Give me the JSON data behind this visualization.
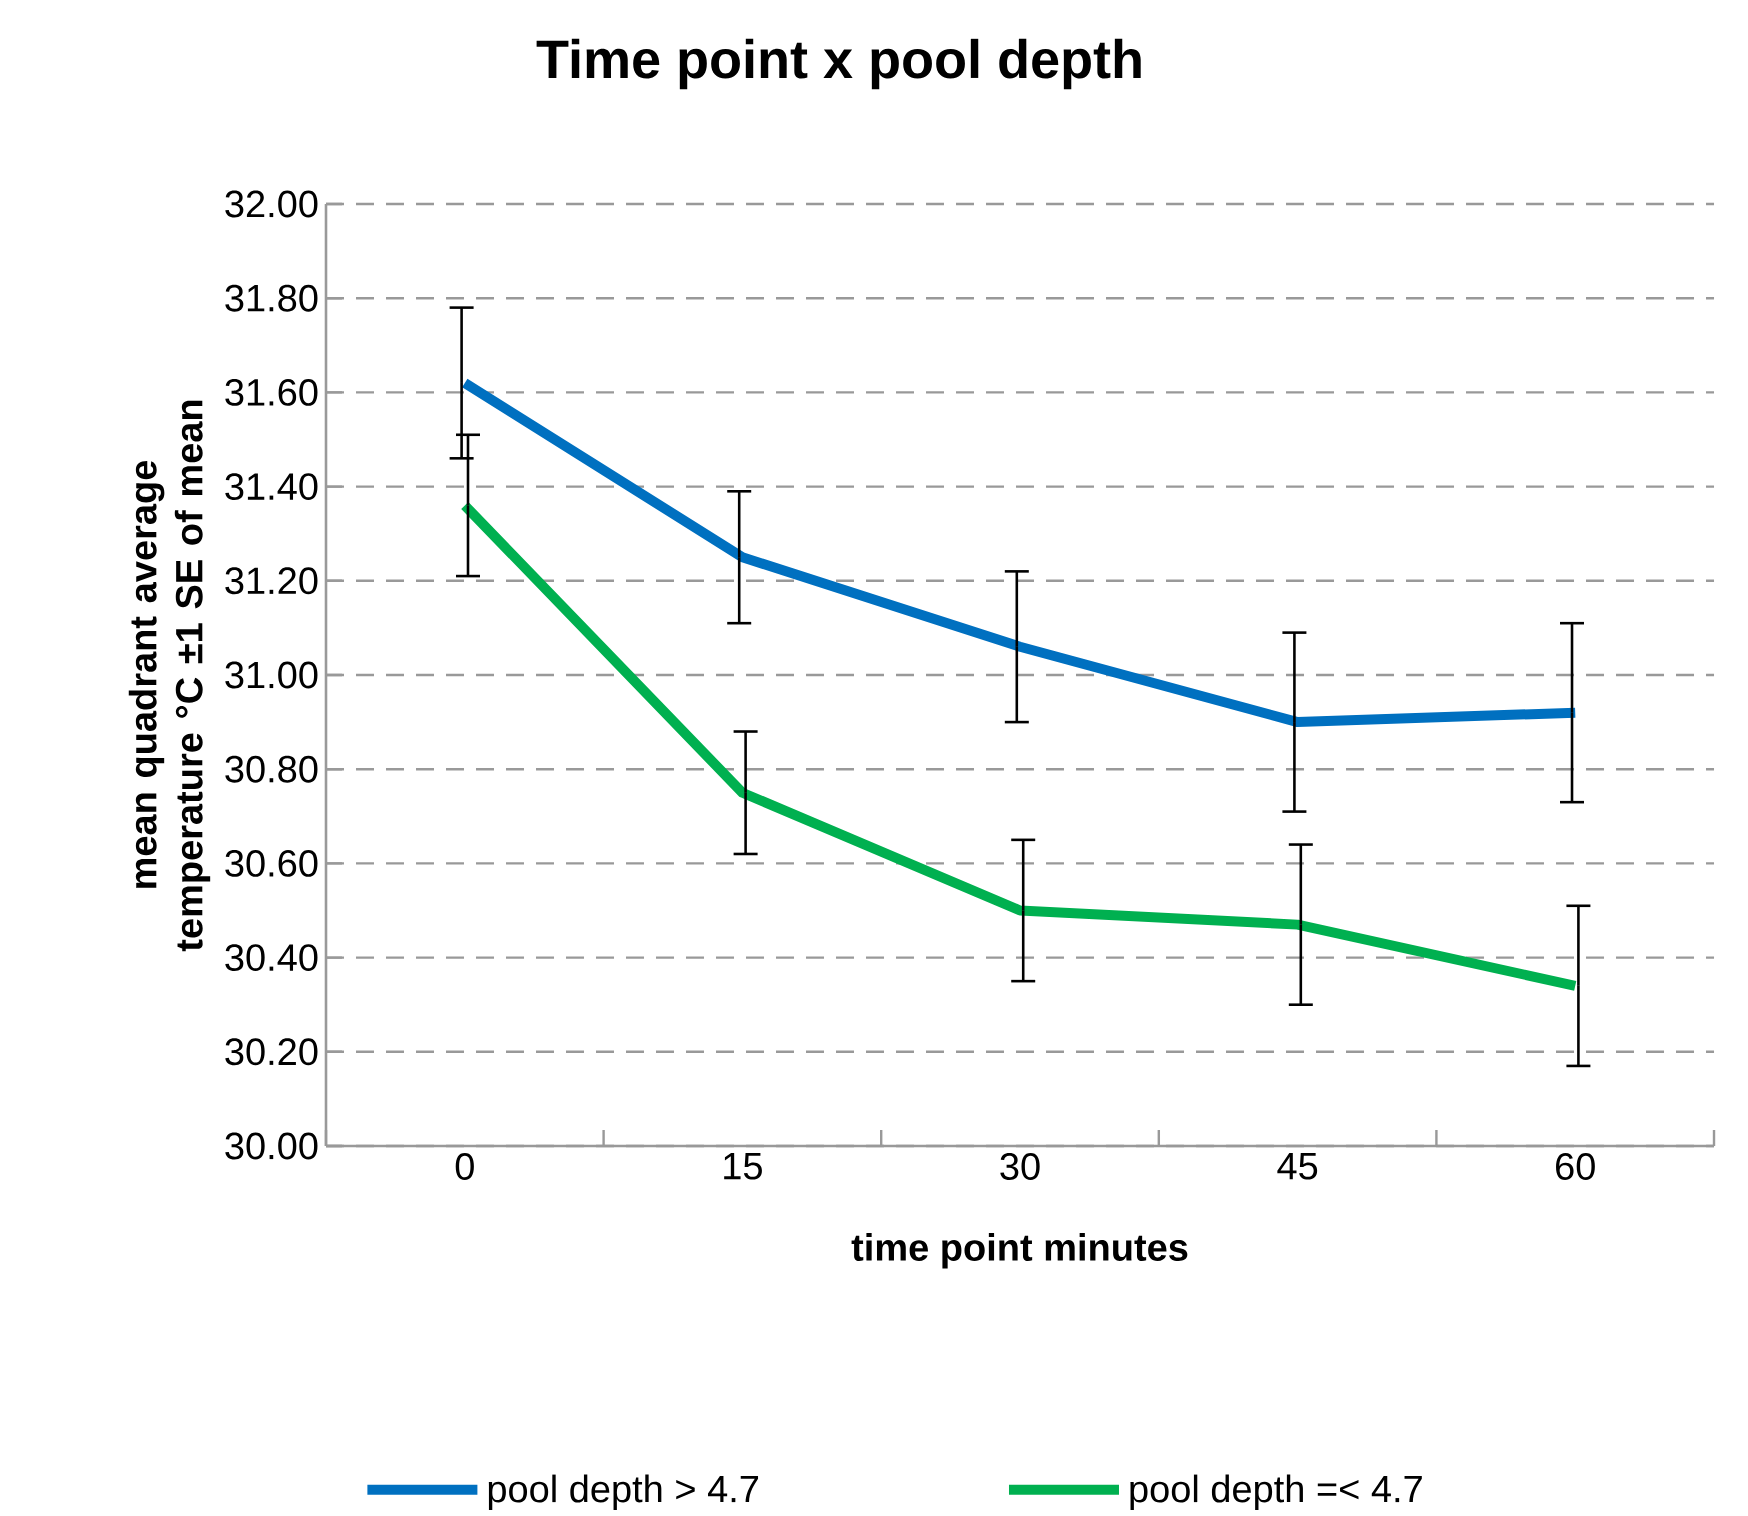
{
  "chart_data": {
    "type": "line",
    "title": "Time point x pool depth",
    "xlabel": "time point minutes",
    "ylabel": "mean quadrant average temperature °C ±1 SE of mean",
    "categories": [
      "0",
      "15",
      "30",
      "45",
      "60"
    ],
    "series": [
      {
        "name": "pool depth > 4.7",
        "color": "#0070c0",
        "values": [
          31.62,
          31.25,
          31.06,
          30.9,
          30.92
        ],
        "errors": [
          0.16,
          0.14,
          0.16,
          0.19,
          0.19
        ]
      },
      {
        "name": "pool depth =< 4.7",
        "color": "#00b050",
        "values": [
          31.36,
          30.75,
          30.5,
          30.47,
          30.34
        ],
        "errors": [
          0.15,
          0.13,
          0.15,
          0.17,
          0.17
        ]
      }
    ],
    "ylim": [
      30.0,
      32.0
    ],
    "yticks": [
      {
        "value": 30.0,
        "label": "30.00"
      },
      {
        "value": 30.2,
        "label": "30.20"
      },
      {
        "value": 30.4,
        "label": "30.40"
      },
      {
        "value": 30.6,
        "label": "30.60"
      },
      {
        "value": 30.8,
        "label": "30.80"
      },
      {
        "value": 31.0,
        "label": "31.00"
      },
      {
        "value": 31.2,
        "label": "31.20"
      },
      {
        "value": 31.4,
        "label": "31.40"
      },
      {
        "value": 31.6,
        "label": "31.60"
      },
      {
        "value": 31.8,
        "label": "31.80"
      },
      {
        "value": 32.0,
        "label": "32.00"
      }
    ],
    "grid": "y",
    "legend": "bottom",
    "marker": "none",
    "line_style": "solid"
  }
}
